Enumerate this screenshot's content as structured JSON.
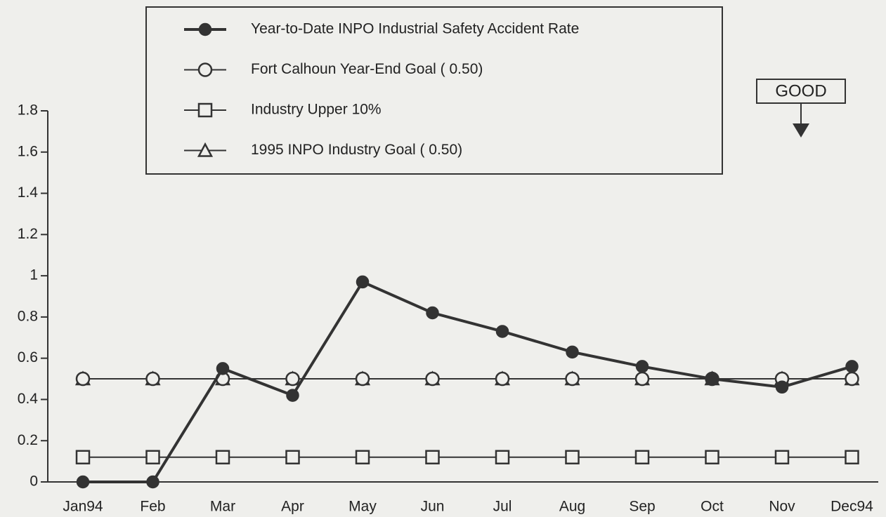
{
  "chart_data": {
    "type": "line",
    "categories": [
      "Jan94",
      "Feb",
      "Mar",
      "Apr",
      "May",
      "Jun",
      "Jul",
      "Aug",
      "Sep",
      "Oct",
      "Nov",
      "Dec94"
    ],
    "series": [
      {
        "name": "Year-to-Date INPO Industrial Safety Accident Rate",
        "color": "#333333",
        "marker": "filled-circle",
        "values": [
          0,
          0,
          0.55,
          0.42,
          0.97,
          0.82,
          0.73,
          0.63,
          0.56,
          0.5,
          0.46,
          0.56
        ]
      },
      {
        "name": "Fort Calhoun Year-End Goal ( 0.50)",
        "color": "#333333",
        "marker": "circle",
        "values": [
          0.5,
          0.5,
          0.5,
          0.5,
          0.5,
          0.5,
          0.5,
          0.5,
          0.5,
          0.5,
          0.5,
          0.5
        ]
      },
      {
        "name": "Industry Upper 10%",
        "color": "#333333",
        "marker": "square",
        "values": [
          0.12,
          0.12,
          0.12,
          0.12,
          0.12,
          0.12,
          0.12,
          0.12,
          0.12,
          0.12,
          0.12,
          0.12
        ]
      },
      {
        "name": "1995 INPO Industry Goal ( 0.50)",
        "color": "#333333",
        "marker": "triangle",
        "values": [
          0.5,
          0.5,
          0.5,
          0.5,
          0.5,
          0.5,
          0.5,
          0.5,
          0.5,
          0.5,
          0.5,
          0.5
        ]
      }
    ],
    "ylim": [
      0,
      1.8
    ],
    "yticks": [
      0,
      0.2,
      0.4,
      0.6,
      0.8,
      1,
      1.2,
      1.4,
      1.6,
      1.8
    ],
    "annotation": "GOOD",
    "legend": "top"
  }
}
